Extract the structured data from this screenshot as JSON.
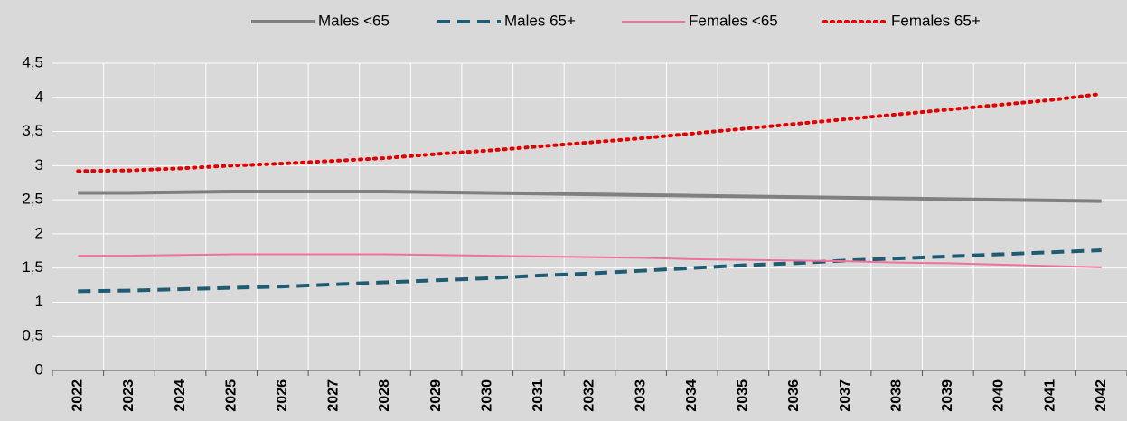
{
  "chart_data": {
    "type": "line",
    "categories": [
      "2022",
      "2023",
      "2024",
      "2025",
      "2026",
      "2027",
      "2028",
      "2029",
      "2030",
      "2031",
      "2032",
      "2033",
      "2034",
      "2035",
      "2036",
      "2037",
      "2038",
      "2039",
      "2040",
      "2041",
      "2042"
    ],
    "series": [
      {
        "name": "Males <65",
        "color": "#808080",
        "style": "solid",
        "width": 4,
        "values": [
          2.6,
          2.6,
          2.61,
          2.62,
          2.62,
          2.62,
          2.62,
          2.61,
          2.6,
          2.59,
          2.58,
          2.57,
          2.56,
          2.55,
          2.54,
          2.53,
          2.52,
          2.51,
          2.5,
          2.49,
          2.48
        ]
      },
      {
        "name": "Males 65+",
        "color": "#1f5c73",
        "style": "dashed",
        "width": 4,
        "values": [
          1.16,
          1.17,
          1.19,
          1.21,
          1.23,
          1.26,
          1.29,
          1.32,
          1.35,
          1.39,
          1.42,
          1.46,
          1.5,
          1.54,
          1.57,
          1.61,
          1.64,
          1.67,
          1.7,
          1.73,
          1.76
        ]
      },
      {
        "name": "Females <65",
        "color": "#f0729a",
        "style": "solid",
        "width": 2,
        "values": [
          1.68,
          1.68,
          1.69,
          1.7,
          1.7,
          1.7,
          1.7,
          1.69,
          1.68,
          1.67,
          1.66,
          1.65,
          1.63,
          1.62,
          1.61,
          1.6,
          1.58,
          1.57,
          1.55,
          1.53,
          1.51
        ]
      },
      {
        "name": "Females 65+",
        "color": "#e00000",
        "style": "dotted",
        "width": 4,
        "values": [
          2.92,
          2.93,
          2.96,
          3.0,
          3.03,
          3.07,
          3.11,
          3.17,
          3.22,
          3.28,
          3.34,
          3.4,
          3.47,
          3.54,
          3.61,
          3.68,
          3.75,
          3.82,
          3.89,
          3.96,
          4.05
        ]
      }
    ],
    "ylim": [
      0,
      4.5
    ],
    "yticks": [
      0,
      {
        "value": 0.5,
        "label": "0,5"
      },
      1,
      {
        "value": 1.5,
        "label": "1,5"
      },
      2,
      {
        "value": 2.5,
        "label": "2,5"
      },
      3,
      {
        "value": 3.5,
        "label": "3,5"
      },
      4,
      {
        "value": 4.5,
        "label": "4,5"
      }
    ],
    "grid": true,
    "legend": "top",
    "background": "#d9d9d9"
  }
}
